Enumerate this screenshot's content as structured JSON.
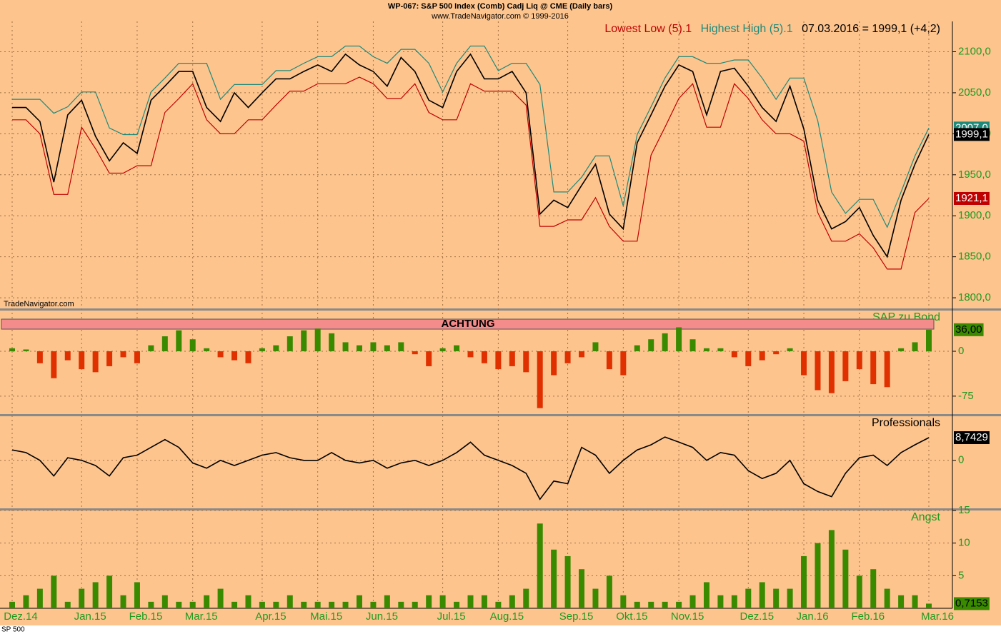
{
  "header": {
    "title": "WP-067:  S&P 500 Index (Comb) Cadj Liq @ CME  (Daily bars)",
    "subtitle": "www.TradeNavigator.com © 1999-2016",
    "watermark": "TradeNavigator.com",
    "footer": "SP  500"
  },
  "chart_data": [
    {
      "type": "line",
      "annotation": "07.03.2016 = 1999,1 (+4,2)",
      "values": [
        2032,
        2032,
        2015,
        1941,
        2023,
        2041,
        1997,
        1967,
        1989,
        1976,
        2041,
        2058,
        2076,
        2076,
        2032,
        2015,
        2050,
        2032,
        2050,
        2067,
        2067,
        2076,
        2084,
        2076,
        2097,
        2084,
        2076,
        2058,
        2093,
        2076,
        2041,
        2032,
        2076,
        2097,
        2067,
        2067,
        2076,
        2050,
        1902,
        1919,
        1910,
        1937,
        1963,
        1902,
        1884,
        1989,
        2023,
        2058,
        2084,
        2076,
        2023,
        2076,
        2080,
        2058,
        2032,
        2015,
        2058,
        2006,
        1919,
        1884,
        1893,
        1910,
        1876,
        1850,
        1919,
        1963,
        1999.1
      ],
      "color": "#000000",
      "last_label": "1999,1",
      "series": [
        {
          "name": "Lowest Low (5).1",
          "color": "#c00000",
          "last_label": "1921,1",
          "values": [
            2017,
            2017,
            2000,
            1926,
            1926,
            2008,
            1982,
            1952,
            1952,
            1961,
            1961,
            2026,
            2043,
            2061,
            2017,
            2000,
            2000,
            2017,
            2017,
            2035,
            2052,
            2052,
            2061,
            2061,
            2061,
            2069,
            2061,
            2043,
            2043,
            2061,
            2026,
            2017,
            2017,
            2061,
            2052,
            2052,
            2052,
            2035,
            1887,
            1887,
            1895,
            1895,
            1922,
            1887,
            1869,
            1869,
            1974,
            2008,
            2043,
            2061,
            2008,
            2008,
            2061,
            2043,
            2017,
            2000,
            2000,
            1991,
            1904,
            1869,
            1869,
            1878,
            1861,
            1835,
            1835,
            1904,
            1921.1
          ]
        },
        {
          "name": "Highest High (5).1",
          "color": "#1f8a7a",
          "last_label": "2007,0",
          "values": [
            2042,
            2042,
            2042,
            2025,
            2033,
            2051,
            2051,
            2007,
            1999,
            1999,
            2051,
            2068,
            2086,
            2086,
            2086,
            2042,
            2060,
            2060,
            2060,
            2077,
            2077,
            2086,
            2094,
            2094,
            2107,
            2107,
            2094,
            2086,
            2103,
            2103,
            2086,
            2051,
            2086,
            2107,
            2107,
            2077,
            2086,
            2086,
            2060,
            1929,
            1929,
            1947,
            1973,
            1973,
            1912,
            1999,
            2033,
            2068,
            2094,
            2094,
            2086,
            2086,
            2090,
            2090,
            2068,
            2042,
            2068,
            2068,
            2016,
            1929,
            1903,
            1920,
            1920,
            1886,
            1929,
            1973,
            2007
          ]
        }
      ],
      "ylim": [
        1787,
        2137
      ],
      "yticks": [
        {
          "value": 1800,
          "label": "1800,0"
        },
        {
          "value": 1850,
          "label": "1850,0"
        },
        {
          "value": 1900,
          "label": "1900,0"
        },
        {
          "value": 1950,
          "label": "1950,0"
        },
        {
          "value": 2000,
          "label": "2000,0"
        },
        {
          "value": 2050,
          "label": "2050,0"
        },
        {
          "value": 2100,
          "label": "2100,0"
        }
      ],
      "grid": true
    },
    {
      "type": "bar",
      "title": "SAP zu Bond",
      "banner": "ACHTUNG",
      "color": "#3a8a00",
      "negative_color": "#e03000",
      "last_label": "36,00",
      "values": [
        5,
        3,
        -20,
        -45,
        -15,
        -30,
        -35,
        -25,
        -10,
        -20,
        10,
        25,
        35,
        20,
        5,
        -10,
        -15,
        -20,
        5,
        10,
        25,
        35,
        38,
        30,
        15,
        10,
        15,
        10,
        15,
        -5,
        -25,
        5,
        10,
        -10,
        -20,
        -30,
        -25,
        -35,
        -95,
        -40,
        -20,
        -10,
        15,
        -30,
        -40,
        10,
        20,
        30,
        40,
        20,
        5,
        5,
        -10,
        -25,
        -15,
        -5,
        5,
        -40,
        -65,
        -70,
        -50,
        -30,
        -55,
        -60,
        5,
        15,
        36
      ],
      "ylim": [
        -105,
        68
      ],
      "yticks": [
        0,
        -75
      ],
      "grid": true
    },
    {
      "type": "line",
      "title": "Professionals",
      "color": "#000000",
      "last_label": "8,7429",
      "values": [
        4,
        3,
        0,
        -6,
        1,
        0,
        -2,
        -6,
        1,
        2,
        5,
        8,
        5,
        -1,
        -3,
        0,
        -2,
        0,
        2,
        3,
        1,
        0,
        0,
        3,
        0,
        -1,
        0,
        -3,
        -1,
        0,
        -2,
        0,
        3,
        7,
        2,
        0,
        -2,
        -5,
        -15,
        -8,
        -9,
        5,
        2,
        -5,
        0,
        4,
        6,
        9,
        7,
        5,
        0,
        3,
        2,
        -4,
        -7,
        -5,
        0,
        -9,
        -12,
        -14,
        -5,
        1,
        2,
        -2,
        3,
        6,
        8.7429
      ],
      "ylim": [
        -18.5,
        17
      ],
      "yticks": [
        0
      ],
      "grid": true
    },
    {
      "type": "bar",
      "title": "Angst",
      "color": "#3a8a00",
      "last_label": "0,7153",
      "values": [
        1,
        2,
        3,
        5,
        1,
        3,
        4,
        5,
        2,
        4,
        1,
        2,
        1,
        1,
        2,
        3,
        1,
        2,
        1,
        1,
        2,
        1,
        1,
        1,
        1,
        2,
        1,
        2,
        1,
        1,
        2,
        2,
        1,
        2,
        2,
        1,
        2,
        3,
        13,
        9,
        8,
        6,
        3,
        5,
        2,
        1,
        1,
        1,
        1,
        2,
        4,
        2,
        2,
        3,
        4,
        3,
        3,
        8,
        10,
        12,
        9,
        5,
        6,
        3,
        2,
        2,
        0.7153
      ],
      "ylim": [
        0,
        15
      ],
      "yticks": [
        5,
        10,
        15
      ],
      "grid": true,
      "categories": [
        "Dez.14",
        null,
        null,
        null,
        null,
        "Jan.15",
        null,
        null,
        null,
        "Feb.15",
        null,
        null,
        null,
        "Mar.15",
        null,
        null,
        null,
        null,
        "Apr.15",
        null,
        null,
        null,
        "Mai.15",
        null,
        null,
        null,
        "Jun.15",
        null,
        null,
        null,
        null,
        "Jul.15",
        null,
        null,
        null,
        "Aug.15",
        null,
        null,
        null,
        null,
        "Sep.15",
        null,
        null,
        null,
        "Okt.15",
        null,
        null,
        null,
        "Nov.15",
        null,
        null,
        null,
        null,
        "Dez.15",
        null,
        null,
        null,
        "Jan.16",
        null,
        null,
        null,
        "Feb.16",
        null,
        null,
        null,
        null,
        "Mar.16"
      ]
    }
  ]
}
